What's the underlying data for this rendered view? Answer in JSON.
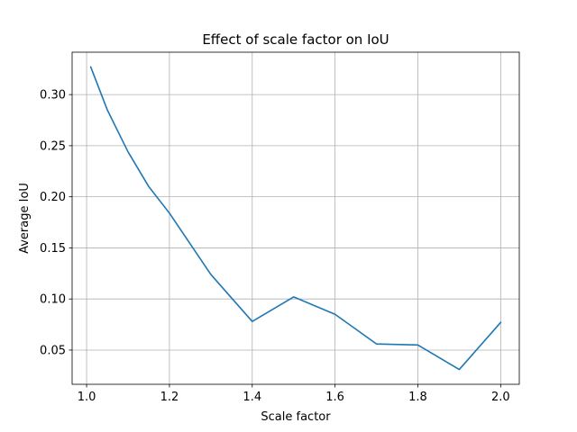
{
  "chart_data": {
    "type": "line",
    "title": "Effect of scale factor on IoU",
    "xlabel": "Scale factor",
    "ylabel": "Average IoU",
    "xlim": [
      0.965,
      2.045
    ],
    "ylim": [
      0.0165,
      0.3415
    ],
    "xticks": [
      1.0,
      1.2,
      1.4,
      1.6,
      1.8,
      2.0
    ],
    "xtick_labels": [
      "1.0",
      "1.2",
      "1.4",
      "1.6",
      "1.8",
      "2.0"
    ],
    "yticks": [
      0.05,
      0.1,
      0.15,
      0.2,
      0.25,
      0.3
    ],
    "ytick_labels": [
      "0.05",
      "0.10",
      "0.15",
      "0.20",
      "0.25",
      "0.30"
    ],
    "grid": true,
    "legend": false,
    "series": [
      {
        "color": "#1f77b4",
        "x": [
          1.01,
          1.05,
          1.1,
          1.15,
          1.2,
          1.3,
          1.4,
          1.5,
          1.6,
          1.7,
          1.8,
          1.9,
          2.0
        ],
        "y": [
          0.327,
          0.285,
          0.244,
          0.21,
          0.184,
          0.124,
          0.078,
          0.102,
          0.085,
          0.056,
          0.055,
          0.031,
          0.077
        ]
      }
    ]
  }
}
